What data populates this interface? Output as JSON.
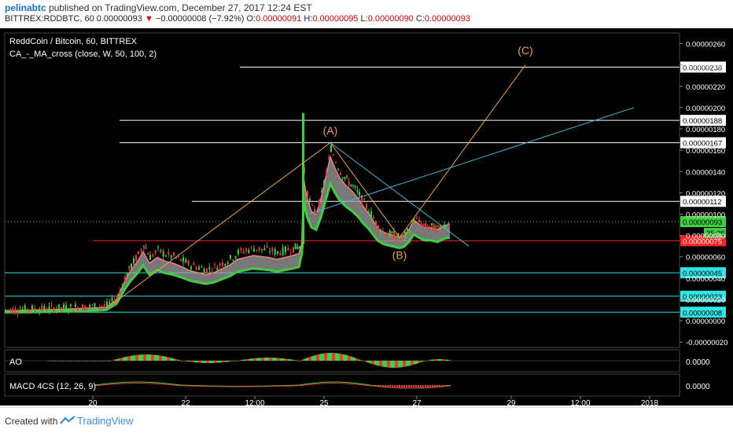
{
  "header": {
    "author": "pelinabtc",
    "published_text": " published on TradingView.com, December 27, 2017 12:24 EST",
    "symbol": "BITTREX:RDDBTC, 60",
    "last": "0.00000093",
    "change": "−0.00000008 (−7.92%)",
    "o_label": "O:",
    "o_value": "0.00000091",
    "h_label": "H:",
    "h_value": "0.00000095",
    "l_label": "L:",
    "l_value": "0.00000090",
    "c_label": "C:",
    "c_value": "0.00000093"
  },
  "legend": {
    "pair": "ReddCoin / Bitcoin, 60, BITTREX",
    "indicator": "CA_-_MA_cross (close, W, 50, 100, 2)"
  },
  "chart_data": {
    "type": "candlestick",
    "y_ticks": [
      "0.00000260",
      "0.00000240",
      "0.00000220",
      "0.00000200",
      "0.00000180",
      "0.00000160",
      "0.00000140",
      "0.00000120",
      "0.00000100",
      "0.00000080",
      "0.00000060",
      "0.00000040",
      "0.00000020",
      "0.00000000",
      "-0.00000020"
    ],
    "x_ticks": [
      "20",
      "22",
      "12:00",
      "25",
      "27",
      "29",
      "12:00",
      "2018"
    ],
    "level_lines": [
      {
        "label": "0.00000238",
        "color": "#ffffff"
      },
      {
        "label": "0.00000188",
        "color": "#ffffff"
      },
      {
        "label": "0.00000167",
        "color": "#ffffff"
      },
      {
        "label": "0.00000112",
        "color": "#ffffff"
      },
      {
        "label": "0.00000075",
        "color": "#ff2020"
      },
      {
        "label": "0.00000045",
        "color": "#2ee6e6"
      },
      {
        "label": "0.00000023",
        "color": "#2ee6e6"
      },
      {
        "label": "0.00000008",
        "color": "#2ee6e6"
      }
    ],
    "current_price": "0.00000093",
    "countdown": "35:26",
    "wave_labels": [
      "(A)",
      "(B)",
      "(C)"
    ],
    "colors": {
      "up": "#3fcf3f",
      "down": "#e23c3c",
      "ma_fast": "#f08080",
      "ma_slow": "#3ecf3e",
      "fill": "#a0a0a0",
      "elliott": "#f0a040",
      "trend": "#40b8d8"
    }
  },
  "ao": {
    "label": "AO",
    "value": "0.0000"
  },
  "macd": {
    "label": "MACD 4CS (12, 26, 9)",
    "value": "0.0000"
  },
  "footer": {
    "created": "Created with",
    "brand": "TradingView"
  }
}
